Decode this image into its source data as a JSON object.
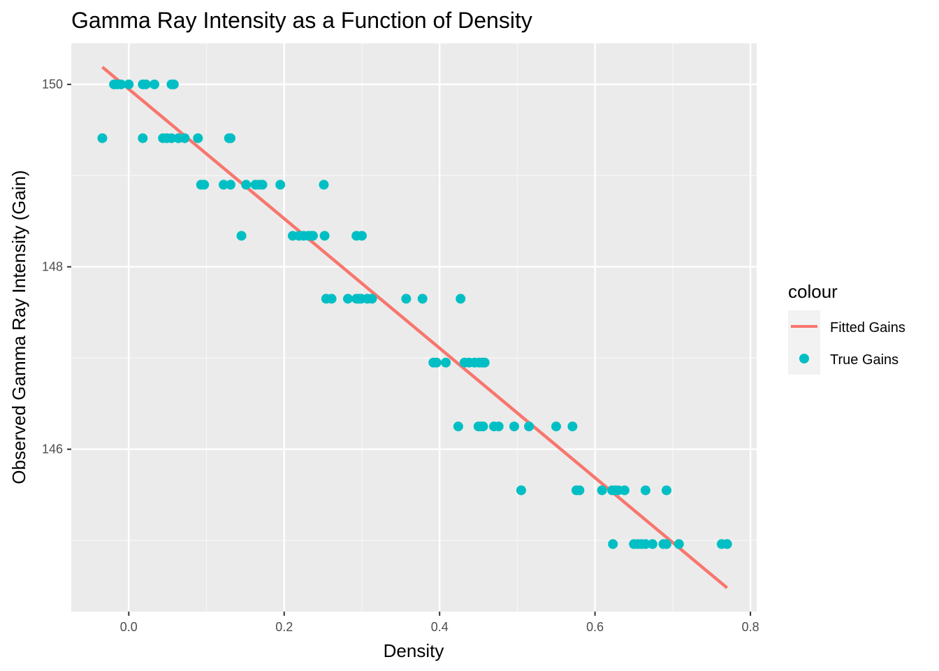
{
  "chart_data": {
    "type": "scatter",
    "title": "Gamma Ray Intensity as a Function of Density",
    "xlabel": "Density",
    "ylabel": "Observed Gamma Ray Intensity (Gain)",
    "xlim": [
      -0.074,
      0.808
    ],
    "ylim": [
      144.22,
      150.45
    ],
    "x_ticks": [
      0.0,
      0.2,
      0.4,
      0.6,
      0.8
    ],
    "x_tick_labels": [
      "0.0",
      "0.2",
      "0.4",
      "0.6",
      "0.8"
    ],
    "y_ticks": [
      146,
      148,
      150
    ],
    "y_tick_labels": [
      "146",
      "148",
      "150"
    ],
    "grid": true,
    "legend": {
      "title": "colour",
      "placement": "right",
      "entries": [
        {
          "label": "Fitted Gains",
          "type": "line",
          "color": "#F8766D"
        },
        {
          "label": "True Gains",
          "type": "point",
          "color": "#00BFC4"
        }
      ]
    },
    "fitted_line": {
      "name": "Fitted Gains",
      "color": "#F8766D",
      "x": [
        -0.034,
        0.77
      ],
      "y": [
        150.19,
        144.48
      ]
    },
    "series": [
      {
        "name": "True Gains",
        "color": "#00BFC4",
        "points": [
          [
            -0.019,
            150.0
          ],
          [
            -0.015,
            150.0
          ],
          [
            -0.01,
            150.0
          ],
          [
            0.0,
            150.0
          ],
          [
            0.018,
            150.0
          ],
          [
            0.022,
            150.0
          ],
          [
            0.033,
            150.0
          ],
          [
            0.055,
            150.0
          ],
          [
            0.058,
            150.0
          ],
          [
            -0.034,
            149.41
          ],
          [
            0.018,
            149.41
          ],
          [
            0.044,
            149.41
          ],
          [
            0.049,
            149.41
          ],
          [
            0.055,
            149.41
          ],
          [
            0.064,
            149.41
          ],
          [
            0.072,
            149.41
          ],
          [
            0.089,
            149.41
          ],
          [
            0.129,
            149.41
          ],
          [
            0.131,
            149.41
          ],
          [
            0.093,
            148.9
          ],
          [
            0.097,
            148.9
          ],
          [
            0.122,
            148.9
          ],
          [
            0.131,
            148.9
          ],
          [
            0.151,
            148.9
          ],
          [
            0.163,
            148.9
          ],
          [
            0.168,
            148.9
          ],
          [
            0.172,
            148.9
          ],
          [
            0.195,
            148.9
          ],
          [
            0.251,
            148.9
          ],
          [
            0.145,
            148.34
          ],
          [
            0.211,
            148.34
          ],
          [
            0.219,
            148.34
          ],
          [
            0.225,
            148.34
          ],
          [
            0.231,
            148.34
          ],
          [
            0.235,
            148.34
          ],
          [
            0.237,
            148.34
          ],
          [
            0.252,
            148.34
          ],
          [
            0.293,
            148.34
          ],
          [
            0.3,
            148.34
          ],
          [
            0.254,
            147.65
          ],
          [
            0.261,
            147.65
          ],
          [
            0.282,
            147.65
          ],
          [
            0.293,
            147.65
          ],
          [
            0.296,
            147.65
          ],
          [
            0.299,
            147.65
          ],
          [
            0.307,
            147.65
          ],
          [
            0.313,
            147.65
          ],
          [
            0.357,
            147.65
          ],
          [
            0.378,
            147.65
          ],
          [
            0.427,
            147.65
          ],
          [
            0.392,
            146.95
          ],
          [
            0.396,
            146.95
          ],
          [
            0.408,
            146.95
          ],
          [
            0.432,
            146.95
          ],
          [
            0.438,
            146.95
          ],
          [
            0.445,
            146.95
          ],
          [
            0.451,
            146.95
          ],
          [
            0.455,
            146.95
          ],
          [
            0.458,
            146.95
          ],
          [
            0.424,
            146.25
          ],
          [
            0.45,
            146.25
          ],
          [
            0.454,
            146.25
          ],
          [
            0.456,
            146.25
          ],
          [
            0.47,
            146.25
          ],
          [
            0.476,
            146.25
          ],
          [
            0.496,
            146.25
          ],
          [
            0.515,
            146.25
          ],
          [
            0.55,
            146.25
          ],
          [
            0.571,
            146.25
          ],
          [
            0.505,
            145.55
          ],
          [
            0.576,
            145.55
          ],
          [
            0.58,
            145.55
          ],
          [
            0.609,
            145.55
          ],
          [
            0.622,
            145.55
          ],
          [
            0.626,
            145.55
          ],
          [
            0.63,
            145.55
          ],
          [
            0.638,
            145.55
          ],
          [
            0.665,
            145.55
          ],
          [
            0.692,
            145.55
          ],
          [
            0.623,
            144.96
          ],
          [
            0.65,
            144.96
          ],
          [
            0.655,
            144.96
          ],
          [
            0.66,
            144.96
          ],
          [
            0.665,
            144.96
          ],
          [
            0.674,
            144.96
          ],
          [
            0.688,
            144.96
          ],
          [
            0.692,
            144.96
          ],
          [
            0.708,
            144.96
          ],
          [
            0.763,
            144.96
          ],
          [
            0.77,
            144.96
          ]
        ]
      }
    ]
  }
}
